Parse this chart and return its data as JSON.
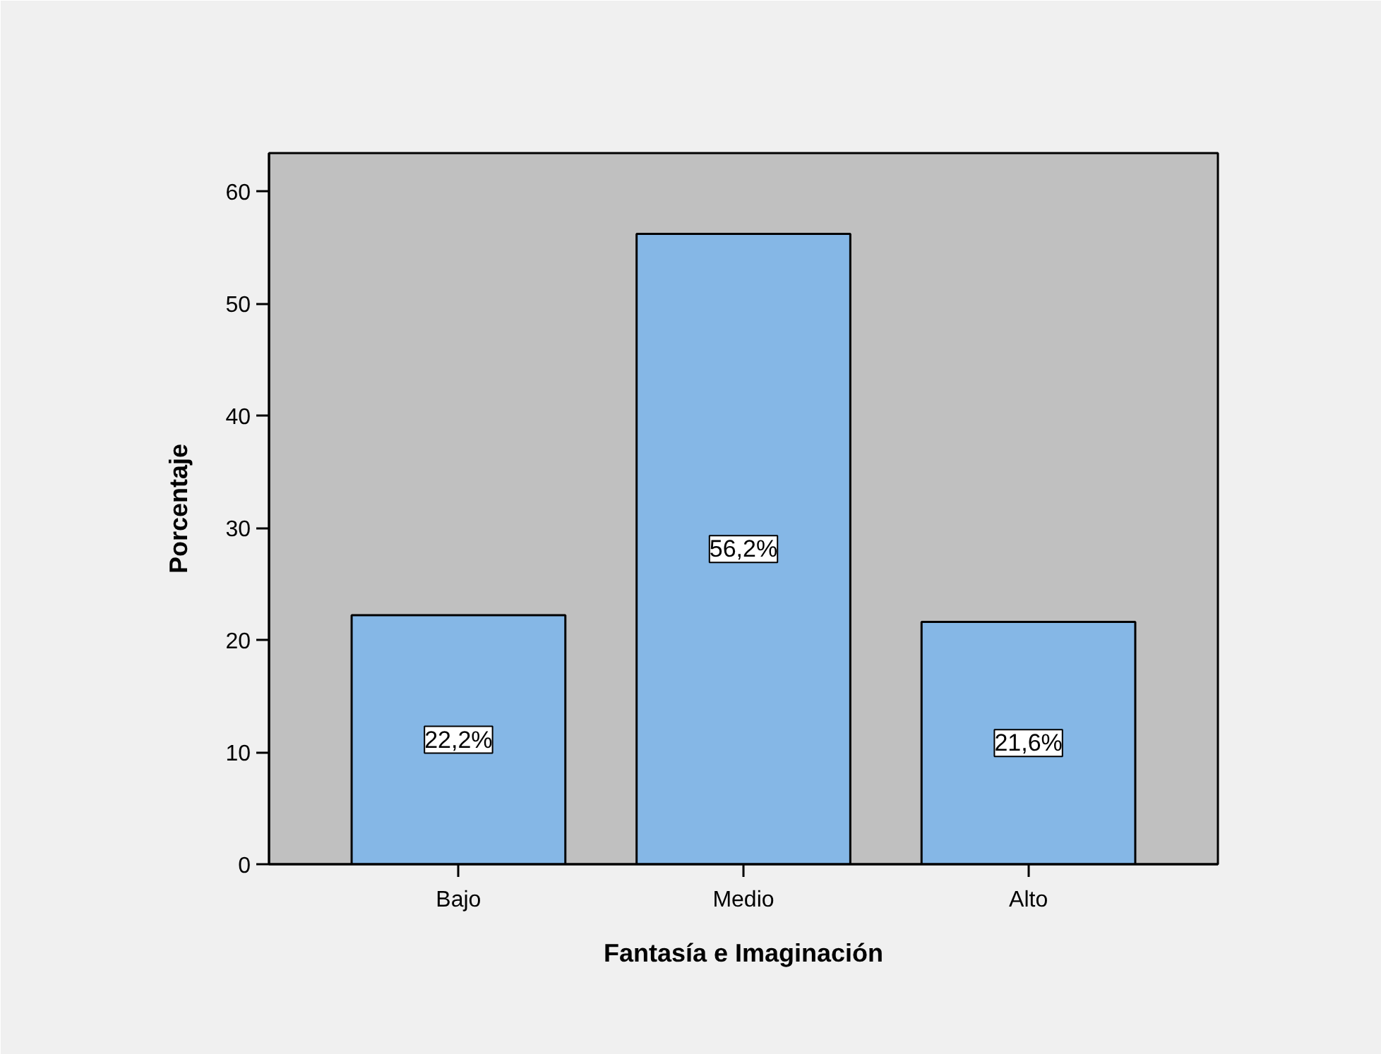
{
  "chart_data": {
    "type": "bar",
    "xlabel": "Fantasía e Imaginación",
    "ylabel": "Porcentaje",
    "categories": [
      "Bajo",
      "Medio",
      "Alto"
    ],
    "values": [
      22.2,
      56.2,
      21.6
    ],
    "value_labels": [
      "22,2%",
      "56,2%",
      "21,6%"
    ],
    "color": "#85b7e6",
    "ylim": [
      0,
      63.4
    ],
    "yticks": [
      0,
      10,
      20,
      30,
      40,
      50,
      60
    ],
    "grid": false
  }
}
